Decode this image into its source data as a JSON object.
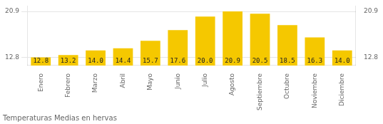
{
  "chart_data": {
    "type": "bar",
    "title": "Temperaturas Medias en hervas",
    "categories": [
      "Enero",
      "Febrero",
      "Marzo",
      "Abril",
      "Mayo",
      "Junio",
      "Julio",
      "Agosto",
      "Septiembre",
      "Octubre",
      "Noviembre",
      "Diciembre"
    ],
    "values": [
      12.8,
      13.2,
      14.0,
      14.4,
      15.7,
      17.6,
      20.0,
      20.9,
      20.5,
      18.5,
      16.3,
      14.0
    ],
    "value_labels": [
      "12.8",
      "13.2",
      "14.0",
      "14.4",
      "15.7",
      "17.6",
      "20.0",
      "20.9",
      "20.5",
      "18.5",
      "16.3",
      "14.0"
    ],
    "color": "#F5C800",
    "ylim": [
      11.342,
      21.872
    ],
    "yticks": [
      12.8,
      20.9
    ],
    "y2lim": [
      11.342,
      21.872
    ],
    "y2ticks": [
      12.8,
      20.9
    ],
    "grid": true,
    "data_labels": true
  }
}
